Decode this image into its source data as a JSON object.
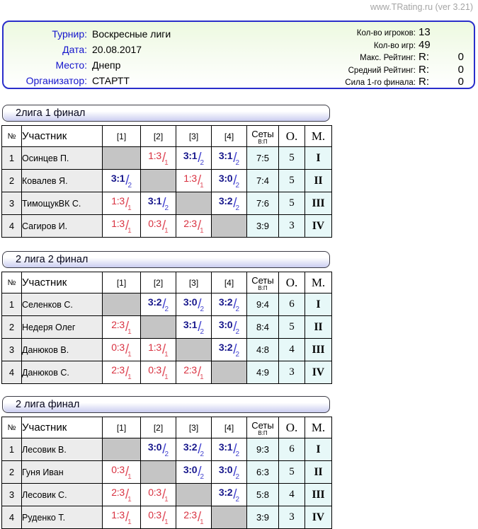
{
  "site": {
    "credit": "www.TRating.ru (ver 3.21)"
  },
  "colors": {
    "border_blue": "#2a2ecb",
    "label_blue": "#1414cc",
    "muted": "#b5c0b2",
    "win": "#18188c",
    "win_slash": "#4343cf",
    "loss": "#d8303f",
    "loss_slash": "#e0505e"
  },
  "info": {
    "fields": [
      {
        "label": "Турнир:",
        "value": "Воскресные лиги"
      },
      {
        "label": "Дата:",
        "value": "20.08.2017"
      },
      {
        "label": "Место:",
        "value": "Днепр"
      },
      {
        "label": "Организатор:",
        "value": "СТАРТТ"
      }
    ],
    "stats": [
      {
        "label": "Кол-во игроков:",
        "value": "13",
        "r_prefix": false,
        "muted": true
      },
      {
        "label": "Кол-во игр:",
        "value": "49",
        "r_prefix": false,
        "muted": true
      },
      {
        "label": "Макс. Рейтинг:",
        "value": "0",
        "r_prefix": true,
        "muted": true
      },
      {
        "label": "Средний Рейтинг:",
        "value": "0",
        "r_prefix": true,
        "muted": true
      },
      {
        "label": "Сила 1-го финала:",
        "value": "0",
        "r_prefix": true,
        "muted": false
      }
    ],
    "r_label": "R:"
  },
  "columns": {
    "num": "№",
    "participant": "Участник",
    "rounds": [
      "[1]",
      "[2]",
      "[3]",
      "[4]"
    ],
    "sets": "Сеты",
    "sets_sub": "В:П",
    "score": "О.",
    "place": "М."
  },
  "tables": [
    {
      "title": "2лига 1 финал",
      "rows": [
        {
          "num": "1",
          "name": "Осинцев П.",
          "cells": [
            null,
            {
              "score": "1:3",
              "pts": "1",
              "win": false
            },
            {
              "score": "3:1",
              "pts": "2",
              "win": true
            },
            {
              "score": "3:1",
              "pts": "2",
              "win": true
            }
          ],
          "sets": "7:5",
          "score": "5",
          "place": "I"
        },
        {
          "num": "2",
          "name": "Ковалев Я.",
          "cells": [
            {
              "score": "3:1",
              "pts": "2",
              "win": true
            },
            null,
            {
              "score": "1:3",
              "pts": "1",
              "win": false
            },
            {
              "score": "3:0",
              "pts": "2",
              "win": true
            }
          ],
          "sets": "7:4",
          "score": "5",
          "place": "II"
        },
        {
          "num": "3",
          "name": "ТимощукВК С.",
          "cells": [
            {
              "score": "1:3",
              "pts": "1",
              "win": false
            },
            {
              "score": "3:1",
              "pts": "2",
              "win": true
            },
            null,
            {
              "score": "3:2",
              "pts": "2",
              "win": true
            }
          ],
          "sets": "7:6",
          "score": "5",
          "place": "III"
        },
        {
          "num": "4",
          "name": "Сагиров И.",
          "cells": [
            {
              "score": "1:3",
              "pts": "1",
              "win": false
            },
            {
              "score": "0:3",
              "pts": "1",
              "win": false
            },
            {
              "score": "2:3",
              "pts": "1",
              "win": false
            },
            null
          ],
          "sets": "3:9",
          "score": "3",
          "place": "IV"
        }
      ]
    },
    {
      "title": "2 лига 2 финал",
      "rows": [
        {
          "num": "1",
          "name": "Селенков С.",
          "cells": [
            null,
            {
              "score": "3:2",
              "pts": "2",
              "win": true
            },
            {
              "score": "3:0",
              "pts": "2",
              "win": true
            },
            {
              "score": "3:2",
              "pts": "2",
              "win": true
            }
          ],
          "sets": "9:4",
          "score": "6",
          "place": "I"
        },
        {
          "num": "2",
          "name": "Недеря Олег",
          "cells": [
            {
              "score": "2:3",
              "pts": "1",
              "win": false
            },
            null,
            {
              "score": "3:1",
              "pts": "2",
              "win": true
            },
            {
              "score": "3:0",
              "pts": "2",
              "win": true
            }
          ],
          "sets": "8:4",
          "score": "5",
          "place": "II"
        },
        {
          "num": "3",
          "name": "Данюков В.",
          "cells": [
            {
              "score": "0:3",
              "pts": "1",
              "win": false
            },
            {
              "score": "1:3",
              "pts": "1",
              "win": false
            },
            null,
            {
              "score": "3:2",
              "pts": "2",
              "win": true
            }
          ],
          "sets": "4:8",
          "score": "4",
          "place": "III"
        },
        {
          "num": "4",
          "name": "Данюков С.",
          "cells": [
            {
              "score": "2:3",
              "pts": "1",
              "win": false
            },
            {
              "score": "0:3",
              "pts": "1",
              "win": false
            },
            {
              "score": "2:3",
              "pts": "1",
              "win": false
            },
            null
          ],
          "sets": "4:9",
          "score": "3",
          "place": "IV"
        }
      ]
    },
    {
      "title": "2 лига финал",
      "rows": [
        {
          "num": "1",
          "name": "Лесовик В.",
          "cells": [
            null,
            {
              "score": "3:0",
              "pts": "2",
              "win": true
            },
            {
              "score": "3:2",
              "pts": "2",
              "win": true
            },
            {
              "score": "3:1",
              "pts": "2",
              "win": true
            }
          ],
          "sets": "9:3",
          "score": "6",
          "place": "I"
        },
        {
          "num": "2",
          "name": "Гуня Иван",
          "cells": [
            {
              "score": "0:3",
              "pts": "1",
              "win": false
            },
            null,
            {
              "score": "3:0",
              "pts": "2",
              "win": true
            },
            {
              "score": "3:0",
              "pts": "2",
              "win": true
            }
          ],
          "sets": "6:3",
          "score": "5",
          "place": "II"
        },
        {
          "num": "3",
          "name": "Лесовик С.",
          "cells": [
            {
              "score": "2:3",
              "pts": "1",
              "win": false
            },
            {
              "score": "0:3",
              "pts": "1",
              "win": false
            },
            null,
            {
              "score": "3:2",
              "pts": "2",
              "win": true
            }
          ],
          "sets": "5:8",
          "score": "4",
          "place": "III"
        },
        {
          "num": "4",
          "name": "Руденко Т.",
          "cells": [
            {
              "score": "1:3",
              "pts": "1",
              "win": false
            },
            {
              "score": "0:3",
              "pts": "1",
              "win": false
            },
            {
              "score": "2:3",
              "pts": "1",
              "win": false
            },
            null
          ],
          "sets": "3:9",
          "score": "3",
          "place": "IV"
        }
      ]
    }
  ]
}
